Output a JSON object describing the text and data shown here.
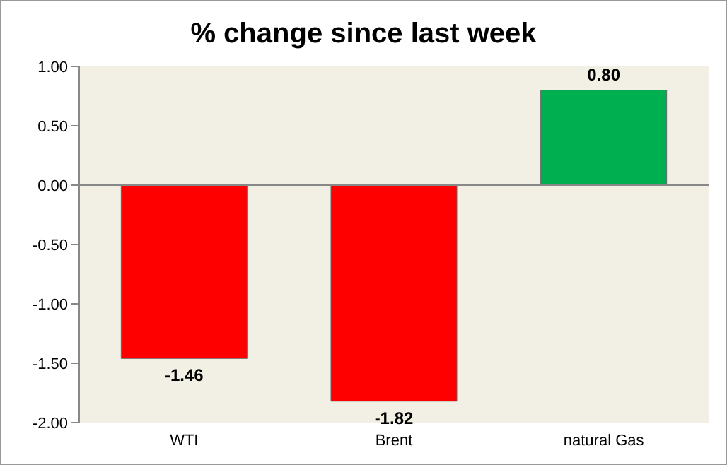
{
  "chart_data": {
    "type": "bar",
    "title": "% change since last week",
    "categories": [
      "WTI",
      "Brent",
      "natural Gas"
    ],
    "values": [
      -1.46,
      -1.82,
      0.8
    ],
    "colors": [
      "#ff0000",
      "#ff0000",
      "#00b050"
    ],
    "value_labels": [
      "-1.46",
      "-1.82",
      "0.80"
    ],
    "ylim": [
      -2,
      1
    ],
    "yticks": [
      {
        "value": 1,
        "label": "1.00"
      },
      {
        "value": 0.5,
        "label": "0.50"
      },
      {
        "value": 0,
        "label": "0.00"
      },
      {
        "value": -0.5,
        "label": "-0.50"
      },
      {
        "value": -1,
        "label": "-1.00"
      },
      {
        "value": -1.5,
        "label": "-1.50"
      },
      {
        "value": -2,
        "label": "-2.00"
      }
    ],
    "legend": false
  }
}
